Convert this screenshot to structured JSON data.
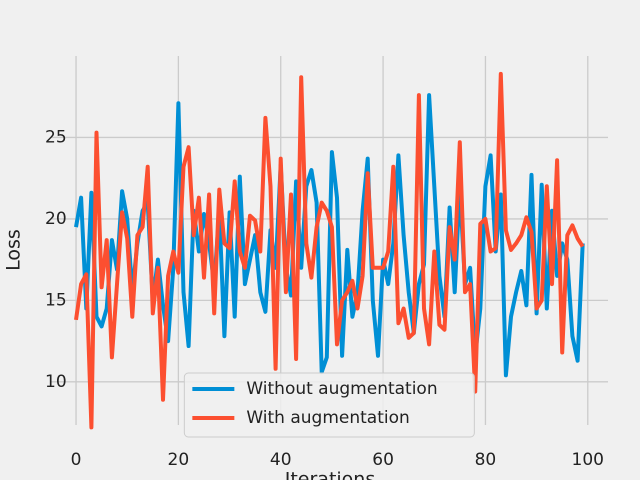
{
  "chart_data": {
    "type": "line",
    "x_label": "Iterations",
    "y_label": "Loss",
    "x": [
      0,
      1,
      2,
      3,
      4,
      5,
      6,
      7,
      8,
      9,
      10,
      11,
      12,
      13,
      14,
      15,
      16,
      17,
      18,
      19,
      20,
      21,
      22,
      23,
      24,
      25,
      26,
      27,
      28,
      29,
      30,
      31,
      32,
      33,
      34,
      35,
      36,
      37,
      38,
      39,
      40,
      41,
      42,
      43,
      44,
      45,
      46,
      47,
      48,
      49,
      50,
      51,
      52,
      53,
      54,
      55,
      56,
      57,
      58,
      59,
      60,
      61,
      62,
      63,
      64,
      65,
      66,
      67,
      68,
      69,
      70,
      71,
      72,
      73,
      74,
      75,
      76,
      77,
      78,
      79,
      80,
      81,
      82,
      83,
      84,
      85,
      86,
      87,
      88,
      89,
      90,
      91,
      92,
      93,
      94,
      95,
      96,
      97,
      98,
      99
    ],
    "series": [
      {
        "name": "Without augmentation",
        "color": "#008fd5",
        "values": [
          19.5,
          21.3,
          14.5,
          21.6,
          14.0,
          13.4,
          14.5,
          18.7,
          16.9,
          21.7,
          20.0,
          15.5,
          18.5,
          20.5,
          21.0,
          15.0,
          17.5,
          14.7,
          12.5,
          17.0,
          27.1,
          15.5,
          12.2,
          20.5,
          18.0,
          20.3,
          18.5,
          16.0,
          20.5,
          12.8,
          20.4,
          14.0,
          22.6,
          16.0,
          17.5,
          19.0,
          15.5,
          14.3,
          19.3,
          17.0,
          23.3,
          17.0,
          15.3,
          22.3,
          17.0,
          22.0,
          23.0,
          21.0,
          10.6,
          11.5,
          24.1,
          21.3,
          11.6,
          18.1,
          14.0,
          15.5,
          20.5,
          23.7,
          15.0,
          11.6,
          17.5,
          16.0,
          18.5,
          23.9,
          19.0,
          15.5,
          13.0,
          16.0,
          17.2,
          27.6,
          22.0,
          16.5,
          14.0,
          20.7,
          15.5,
          22.0,
          16.0,
          17.0,
          11.6,
          14.5,
          22.0,
          23.9,
          18.0,
          21.5,
          10.4,
          14.0,
          15.5,
          16.8,
          14.7,
          22.7,
          14.2,
          22.1,
          14.5,
          20.5,
          16.5,
          18.5,
          17.5,
          12.8,
          11.3,
          18.5
        ]
      },
      {
        "name": "With augmentation",
        "color": "#fc4f30",
        "values": [
          13.8,
          16.0,
          16.6,
          7.2,
          25.3,
          15.8,
          18.7,
          11.5,
          16.0,
          20.4,
          18.8,
          14.0,
          19.0,
          19.5,
          23.2,
          14.2,
          17.0,
          8.9,
          16.5,
          18.0,
          16.7,
          23.2,
          24.4,
          19.0,
          21.3,
          16.4,
          21.5,
          14.2,
          21.8,
          18.5,
          18.2,
          22.3,
          18.0,
          17.0,
          20.2,
          19.9,
          18.0,
          26.2,
          22.0,
          10.8,
          23.7,
          15.5,
          21.5,
          11.4,
          28.7,
          18.5,
          16.4,
          19.5,
          21.0,
          20.5,
          19.5,
          12.3,
          15.0,
          15.5,
          16.2,
          14.5,
          16.5,
          22.8,
          17.0,
          17.0,
          17.0,
          18.0,
          23.2,
          13.6,
          14.5,
          12.7,
          13.0,
          27.6,
          14.5,
          12.3,
          18.0,
          13.5,
          13.2,
          19.5,
          17.5,
          24.7,
          15.5,
          16.0,
          9.4,
          19.7,
          20.0,
          18.0,
          18.2,
          28.9,
          19.3,
          18.1,
          18.5,
          19.0,
          20.1,
          19.2,
          14.5,
          15.0,
          22.0,
          16.0,
          23.6,
          11.8,
          19.0,
          19.6,
          18.8,
          18.3
        ]
      }
    ],
    "xlim": [
      -4.95,
      103.95
    ],
    "xticks": [
      0,
      20,
      40,
      60,
      80,
      100
    ],
    "ylim": [
      6.0,
      30.0
    ],
    "yticks": [
      10,
      15,
      20,
      25
    ],
    "grid": true,
    "legend": "lower center"
  }
}
